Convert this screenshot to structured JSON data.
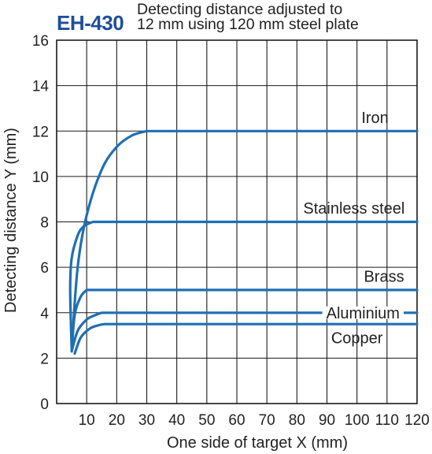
{
  "header": {
    "model": "EH-430",
    "description_line1": "Detecting distance adjusted to",
    "description_line2": "12 mm using 120 mm steel plate"
  },
  "colors": {
    "curve": "#1f6fb4",
    "model_text": "#1f4f9a",
    "grid": "#1a1a1a",
    "text": "#222222"
  },
  "chart_data": {
    "type": "line",
    "title": "",
    "xlabel": "One side of target X (mm)",
    "ylabel": "Detecting distance Y (mm)",
    "xlim": [
      0,
      120
    ],
    "ylim": [
      0,
      16
    ],
    "x_ticks": [
      10,
      20,
      30,
      40,
      50,
      60,
      70,
      80,
      90,
      100,
      110,
      120
    ],
    "x_tick_labels": [
      "10",
      "20",
      "30",
      "40",
      "50",
      "60",
      "70",
      "80",
      "90",
      "100",
      "110",
      "120"
    ],
    "y_ticks": [
      0,
      2,
      4,
      6,
      8,
      10,
      12,
      14,
      16
    ],
    "y_tick_labels": [
      "0",
      "2",
      "4",
      "6",
      "8",
      "10",
      "12",
      "14",
      "16"
    ],
    "grid": true,
    "legend": "inline labels",
    "series": [
      {
        "name": "Iron",
        "x": [
          5,
          7,
          10,
          15,
          20,
          25,
          30,
          120
        ],
        "y": [
          2.4,
          6.0,
          8.3,
          10.3,
          11.3,
          11.8,
          12.0,
          12.0
        ],
        "label_at": [
          106,
          12.6
        ]
      },
      {
        "name": "Stainless steel",
        "x": [
          5,
          4.5,
          5,
          7,
          9,
          12,
          120
        ],
        "y": [
          2.4,
          5.0,
          6.4,
          7.4,
          7.8,
          8.0,
          8.0
        ],
        "label_at": [
          99,
          8.6
        ]
      },
      {
        "name": "Brass",
        "x": [
          5,
          6,
          8,
          10,
          120
        ],
        "y": [
          2.3,
          3.9,
          4.7,
          5.0,
          5.0
        ],
        "label_at": [
          109,
          5.6
        ]
      },
      {
        "name": "Aluminium",
        "x": [
          5,
          7,
          10,
          13,
          15,
          120
        ],
        "y": [
          2.3,
          3.2,
          3.7,
          3.9,
          4.0,
          4.0
        ],
        "label_at": [
          102,
          4.0
        ]
      },
      {
        "name": "Copper",
        "x": [
          6,
          8,
          11,
          14,
          16,
          120
        ],
        "y": [
          2.2,
          2.9,
          3.3,
          3.45,
          3.5,
          3.5
        ],
        "label_at": [
          100,
          2.9
        ]
      }
    ]
  }
}
